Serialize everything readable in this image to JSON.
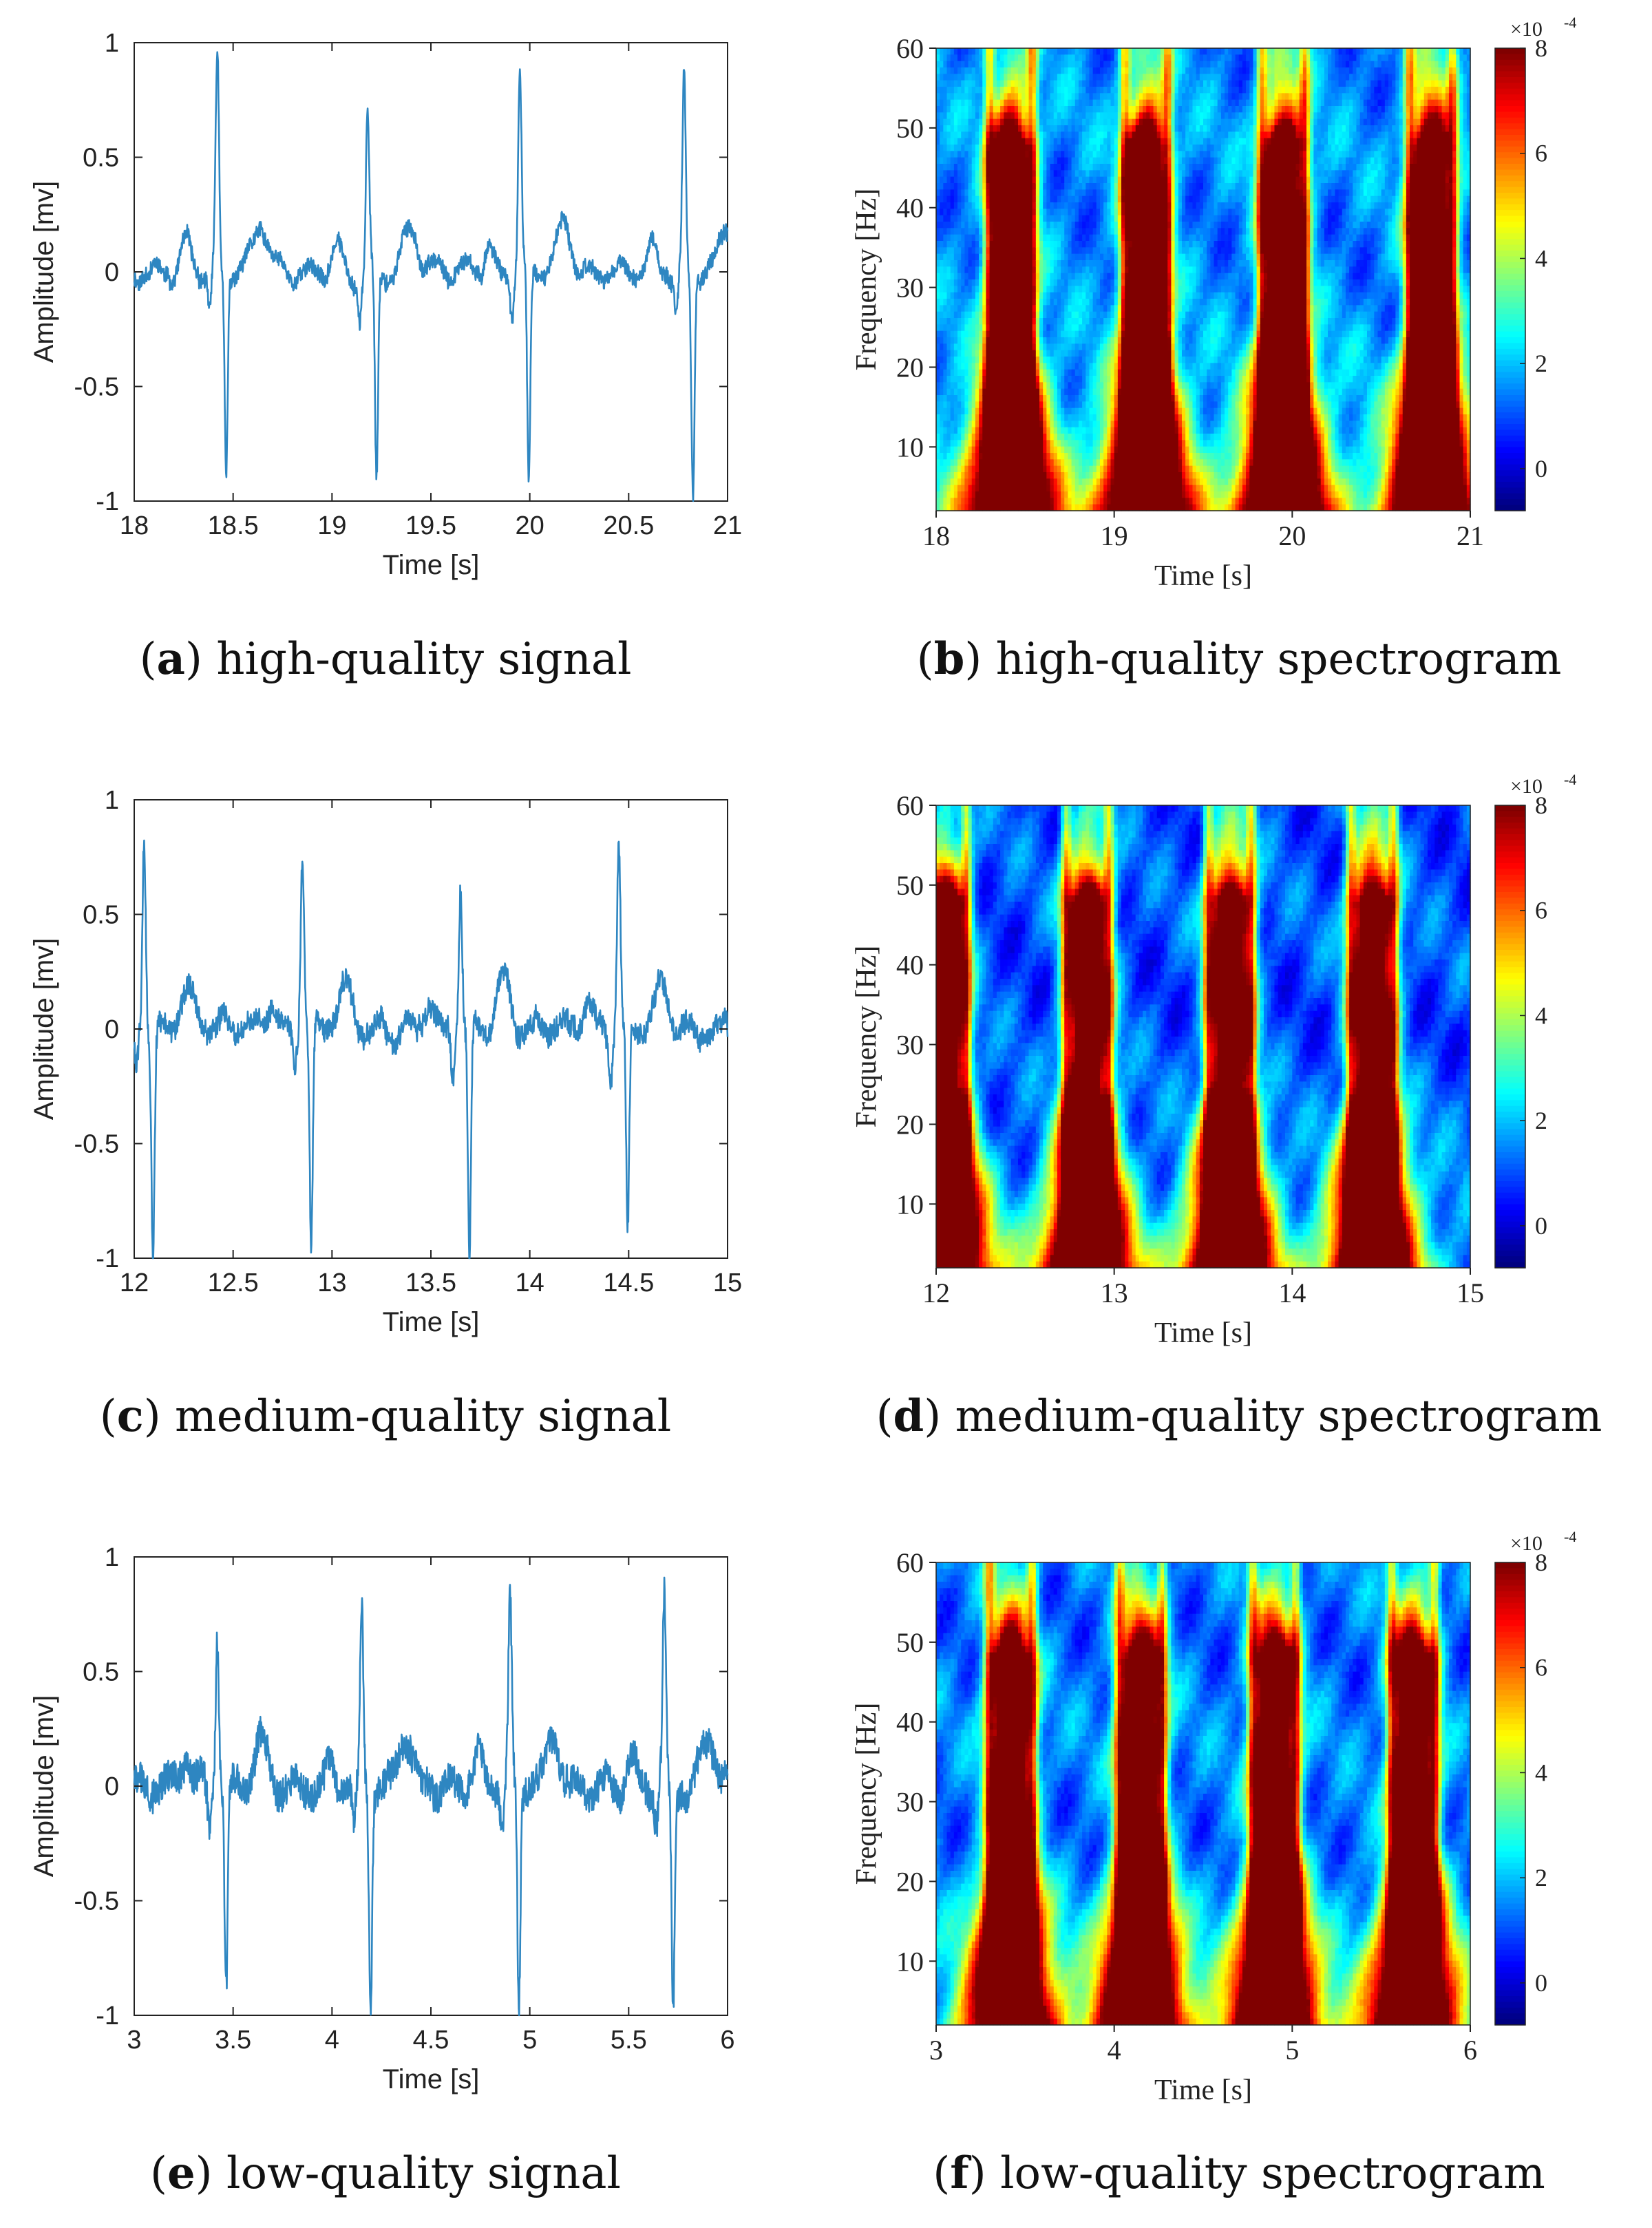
{
  "colors": {
    "line": "#2e86c1",
    "axis": "#222222",
    "colormap": "jet"
  },
  "chart_data": [
    {
      "type": "line",
      "panel_letter": "a",
      "caption": "high-quality signal",
      "xlabel": "Time [s]",
      "ylabel": "Amplitude [mv]",
      "xlim": [
        18,
        21
      ],
      "ylim": [
        -1,
        1
      ],
      "xticks": [
        "18",
        "18.5",
        "19",
        "19.5",
        "20",
        "20.5",
        "21"
      ],
      "yticks": [
        "1",
        "0.5",
        "0",
        "-0.5",
        "-1"
      ],
      "beats": [
        {
          "t": 18.42,
          "peak": 0.93,
          "trough": -0.88
        },
        {
          "t": 19.18,
          "peak": 0.66,
          "trough": -0.92
        },
        {
          "t": 19.95,
          "peak": 0.86,
          "trough": -0.96
        },
        {
          "t": 20.78,
          "peak": 0.84,
          "trough": -0.98
        }
      ]
    },
    {
      "type": "heatmap",
      "panel_letter": "b",
      "caption": "high-quality spectrogram",
      "xlabel": "Time [s]",
      "ylabel": "Frequency [Hz]",
      "xlim": [
        18,
        21
      ],
      "ylim": [
        2,
        60
      ],
      "xticks": [
        "18",
        "19",
        "20",
        "21"
      ],
      "yticks": [
        "60",
        "50",
        "40",
        "30",
        "20",
        "10"
      ],
      "colorbar_ticks": [
        "8",
        "6",
        "4",
        "2",
        "0"
      ],
      "colorbar_exponent": "×10",
      "colorbar_power": "-4",
      "beats": [
        18.42,
        19.18,
        19.95,
        20.78
      ]
    },
    {
      "type": "line",
      "panel_letter": "c",
      "caption": "medium-quality signal",
      "xlabel": "Time [s]",
      "ylabel": "Amplitude [mv]",
      "xlim": [
        12,
        15
      ],
      "ylim": [
        -1,
        1
      ],
      "xticks": [
        "12",
        "12.5",
        "13",
        "13.5",
        "14",
        "14.5",
        "15"
      ],
      "yticks": [
        "1",
        "0.5",
        "0",
        "-0.5",
        "-1"
      ],
      "beats": [
        {
          "t": 12.05,
          "peak": 0.88,
          "trough": -1.0
        },
        {
          "t": 12.85,
          "peak": 0.79,
          "trough": -0.98
        },
        {
          "t": 13.65,
          "peak": 0.65,
          "trough": -1.0
        },
        {
          "t": 14.45,
          "peak": 0.8,
          "trough": -0.88
        }
      ]
    },
    {
      "type": "heatmap",
      "panel_letter": "d",
      "caption": "medium-quality spectrogram",
      "xlabel": "Time [s]",
      "ylabel": "Frequency [Hz]",
      "xlim": [
        12,
        15
      ],
      "ylim": [
        2,
        60
      ],
      "xticks": [
        "12",
        "13",
        "14",
        "15"
      ],
      "yticks": [
        "60",
        "50",
        "40",
        "30",
        "20",
        "10"
      ],
      "colorbar_ticks": [
        "8",
        "6",
        "4",
        "2",
        "0"
      ],
      "colorbar_exponent": "×10",
      "colorbar_power": "-4",
      "beats": [
        12.05,
        12.85,
        13.65,
        14.45
      ]
    },
    {
      "type": "line",
      "panel_letter": "e",
      "caption": "low-quality signal",
      "xlabel": "Time [s]",
      "ylabel": "Amplitude [mv]",
      "xlim": [
        3,
        6
      ],
      "ylim": [
        -1,
        1
      ],
      "xticks": [
        "3",
        "3.5",
        "4",
        "4.5",
        "5",
        "5.5",
        "6"
      ],
      "yticks": [
        "1",
        "0.5",
        "0",
        "-0.5",
        "-1"
      ],
      "beats": [
        {
          "t": 3.42,
          "peak": 0.68,
          "trough": -0.88
        },
        {
          "t": 4.15,
          "peak": 0.8,
          "trough": -0.95
        },
        {
          "t": 4.9,
          "peak": 0.83,
          "trough": -0.98
        },
        {
          "t": 5.68,
          "peak": 0.81,
          "trough": -0.97
        }
      ]
    },
    {
      "type": "heatmap",
      "panel_letter": "f",
      "caption": "low-quality spectrogram",
      "xlabel": "Time [s]",
      "ylabel": "Frequency [Hz]",
      "xlim": [
        3,
        6
      ],
      "ylim": [
        2,
        60
      ],
      "xticks": [
        "3",
        "4",
        "5",
        "6"
      ],
      "yticks": [
        "60",
        "50",
        "40",
        "30",
        "20",
        "10"
      ],
      "colorbar_ticks": [
        "8",
        "6",
        "4",
        "2",
        "0"
      ],
      "colorbar_exponent": "×10",
      "colorbar_power": "-4",
      "beats": [
        3.42,
        4.15,
        4.9,
        5.68
      ]
    }
  ]
}
